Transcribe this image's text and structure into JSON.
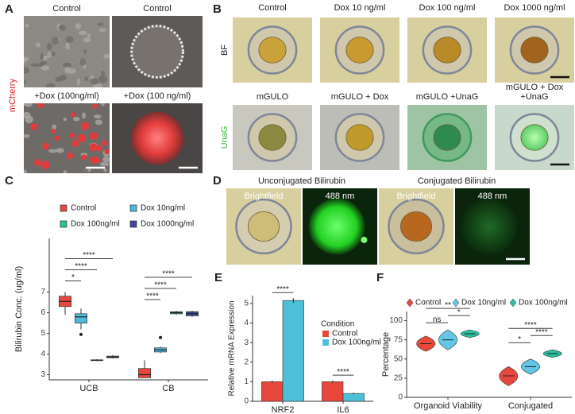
{
  "panels": {
    "A": {
      "letter": "A",
      "row_label": "mCherry",
      "titles": [
        "Control",
        "Control",
        "+Dox (100ng/ml)",
        "+Dox (100 ng/ml)"
      ]
    },
    "B": {
      "letter": "B",
      "row_labels": [
        "BF",
        "UnaG"
      ],
      "titles": [
        [
          "Control"
        ],
        [
          "Dox 10 ng/ml"
        ],
        [
          "Dox 100 ng/ml"
        ],
        [
          "Dox 1000 ng/ml"
        ],
        [
          "mGULO"
        ],
        [
          "mGULO + Dox"
        ],
        [
          "mGULO +UnaG"
        ],
        [
          "mGULO + Dox",
          "+UnaG"
        ]
      ]
    },
    "D": {
      "letter": "D",
      "group_titles": [
        "Unconjugated Bilirubin",
        "Conjugated Bilirubin"
      ],
      "image_labels": [
        "Brightfield",
        "488 nm",
        "Brightfield",
        "488 nm"
      ]
    }
  },
  "chart_data": [
    {
      "type": "box",
      "letter": "C",
      "ylabel": "Bilirubin Conc. (ug/ml)",
      "categories": [
        "UCB",
        "CB"
      ],
      "ylim": [
        2.75,
        9.6
      ],
      "yticks": [
        3,
        4,
        5,
        6,
        7
      ],
      "series": [
        {
          "name": "Control",
          "color": "#e8473c",
          "boxes": [
            {
              "min": 5.9,
              "q1": 6.3,
              "median": 6.55,
              "q3": 6.8,
              "max": 7.0
            },
            {
              "min": 2.85,
              "q1": 2.85,
              "median": 3.0,
              "q3": 3.3,
              "max": 3.7
            }
          ],
          "outliers": [
            [],
            []
          ]
        },
        {
          "name": "Dox 10ng/ml",
          "color": "#4fb8dc",
          "boxes": [
            {
              "min": 5.2,
              "q1": 5.5,
              "median": 5.8,
              "q3": 5.95,
              "max": 6.2
            },
            {
              "min": 4.05,
              "q1": 4.1,
              "median": 4.2,
              "q3": 4.3,
              "max": 4.35
            }
          ],
          "outliers": [
            [
              4.95
            ],
            [
              4.8
            ]
          ]
        },
        {
          "name": "Dox 100ng/ml",
          "color": "#2bbf9f",
          "boxes": [
            {
              "min": 3.65,
              "q1": 3.68,
              "median": 3.7,
              "q3": 3.72,
              "max": 3.75
            },
            {
              "min": 5.9,
              "q1": 5.95,
              "median": 6.0,
              "q3": 6.05,
              "max": 6.1
            }
          ],
          "outliers": [
            [],
            []
          ]
        },
        {
          "name": "Dox 1000ng/ml",
          "color": "#3f4a9a",
          "boxes": [
            {
              "min": 3.78,
              "q1": 3.82,
              "median": 3.85,
              "q3": 3.9,
              "max": 3.95
            },
            {
              "min": 5.8,
              "q1": 5.85,
              "median": 5.95,
              "q3": 6.05,
              "max": 6.1
            }
          ],
          "outliers": [
            [],
            []
          ]
        }
      ],
      "annotations": [
        {
          "label": "*",
          "category": 0,
          "from": 0,
          "to": 1
        },
        {
          "label": "****",
          "category": 0,
          "from": 0,
          "to": 2
        },
        {
          "label": "****",
          "category": 0,
          "from": 0,
          "to": 3
        },
        {
          "label": "****",
          "category": 1,
          "from": 0,
          "to": 1
        },
        {
          "label": "****",
          "category": 1,
          "from": 0,
          "to": 2
        },
        {
          "label": "****",
          "category": 1,
          "from": 0,
          "to": 3
        }
      ]
    },
    {
      "type": "bar",
      "letter": "E",
      "ylabel": "Relative mRNA Expression",
      "categories": [
        "NRF2",
        "IL6"
      ],
      "ylim": [
        0,
        5.4
      ],
      "yticks": [
        0,
        1,
        2,
        3,
        4,
        5
      ],
      "legend_title": "Condition",
      "series": [
        {
          "name": "Control",
          "color": "#e8473c",
          "values": [
            1.0,
            1.0
          ],
          "errors": [
            0.05,
            0.05
          ]
        },
        {
          "name": "Dox 100ng/ml",
          "color": "#4cc0d8",
          "values": [
            5.15,
            0.4
          ],
          "errors": [
            0.12,
            0.04
          ]
        }
      ],
      "annotations": [
        {
          "label": "****",
          "category": 0
        },
        {
          "label": "****",
          "category": 1
        }
      ]
    },
    {
      "type": "violin",
      "letter": "F",
      "ylabel": "Percentage",
      "categories": [
        "Organoid Viability",
        "Conjugated"
      ],
      "ylim": [
        0,
        112
      ],
      "yticks": [
        0,
        25,
        50,
        75,
        100
      ],
      "series": [
        {
          "name": "Control",
          "color": "#e8473c",
          "min": [
            60,
            15
          ],
          "median": [
            70,
            28
          ],
          "max": [
            80,
            40
          ]
        },
        {
          "name": "Dox 10ng/ml",
          "color": "#62c6e6",
          "min": [
            62,
            30
          ],
          "median": [
            75,
            40
          ],
          "max": [
            88,
            50
          ]
        },
        {
          "name": "Dox 100ng/ml",
          "color": "#2bbf9f",
          "min": [
            78,
            52
          ],
          "median": [
            83,
            57
          ],
          "max": [
            88,
            62
          ]
        }
      ],
      "annotations": [
        {
          "label": "ns",
          "category": 0,
          "from": 0,
          "to": 1
        },
        {
          "label": "*",
          "category": 0,
          "from": 1,
          "to": 2
        },
        {
          "label": "**",
          "category": 0,
          "from": 0,
          "to": 2
        },
        {
          "label": "*",
          "category": 1,
          "from": 0,
          "to": 1
        },
        {
          "label": "****",
          "category": 1,
          "from": 1,
          "to": 2
        },
        {
          "label": "****",
          "category": 1,
          "from": 0,
          "to": 2
        }
      ]
    }
  ]
}
